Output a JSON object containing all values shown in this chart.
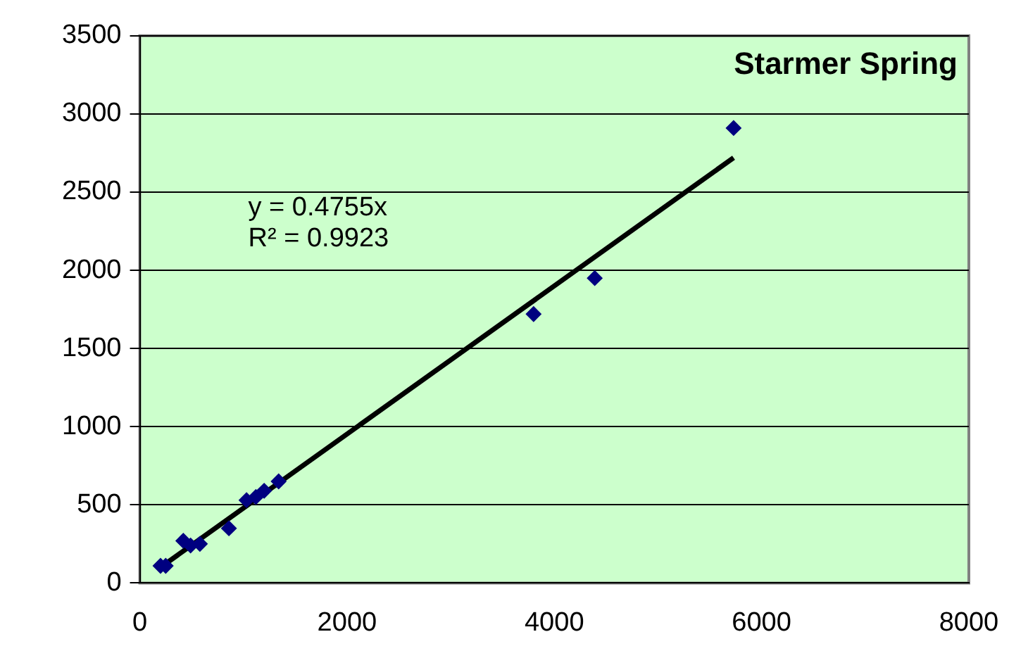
{
  "chart_data": {
    "type": "scatter",
    "title": "Starmer Spring",
    "annotations": [
      "y = 0.4755x",
      "R² = 0.9923"
    ],
    "series": [
      {
        "type": "scatter",
        "color": "#000080",
        "marker": "diamond",
        "x": [
          200,
          250,
          420,
          490,
          580,
          860,
          1030,
          1120,
          1200,
          1340,
          3800,
          4390,
          5730
        ],
        "values": [
          110,
          110,
          270,
          240,
          250,
          350,
          530,
          550,
          590,
          650,
          1720,
          1950,
          2910
        ]
      },
      {
        "type": "line",
        "color": "#000000",
        "marker": "none",
        "x": [
          200,
          5730
        ],
        "values": [
          100,
          2720
        ]
      }
    ],
    "xlim": [
      0,
      8000
    ],
    "xticks": [
      0,
      2000,
      4000,
      6000,
      8000
    ],
    "ylim": [
      0,
      3500
    ],
    "yticks": [
      0,
      500,
      1000,
      1500,
      2000,
      2500,
      3000,
      3500
    ],
    "grid": "y",
    "legend": false
  }
}
